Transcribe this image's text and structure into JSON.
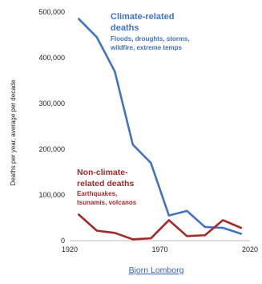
{
  "chart_data": {
    "type": "line",
    "ylabel": "Deaths per year, average per decade",
    "xlim": [
      1920,
      2020
    ],
    "ylim": [
      0,
      500000
    ],
    "x_ticks": [
      "1920",
      "1970",
      "2020"
    ],
    "y_ticks": [
      "0",
      "100,000",
      "200,000",
      "300,000",
      "400,000",
      "500,000"
    ],
    "series": [
      {
        "name": "Climate-related deaths",
        "color": "#4472C4",
        "x": [
          1925,
          1935,
          1945,
          1955,
          1965,
          1975,
          1985,
          1995,
          2005,
          2015
        ],
        "values": [
          485000,
          445000,
          370000,
          210000,
          170000,
          55000,
          65000,
          30000,
          28000,
          15000
        ]
      },
      {
        "name": "Non-climate-related deaths",
        "color": "#A52A2A",
        "x": [
          1925,
          1935,
          1945,
          1955,
          1965,
          1975,
          1985,
          1995,
          2005,
          2015
        ],
        "values": [
          57000,
          22000,
          17000,
          3000,
          5000,
          45000,
          10000,
          12000,
          45000,
          28000
        ]
      }
    ],
    "annotations": {
      "climate": {
        "title": [
          "Climate-related",
          "deaths"
        ],
        "sub": [
          "Floods, droughts, storms,",
          "wildfire, extreme temps"
        ]
      },
      "non_climate": {
        "title": [
          "Non-climate-",
          "related deaths"
        ],
        "sub": [
          "Earthquakes,",
          "tsunamis, volcanos"
        ]
      }
    }
  },
  "credit": "Bjorn Lomborg"
}
